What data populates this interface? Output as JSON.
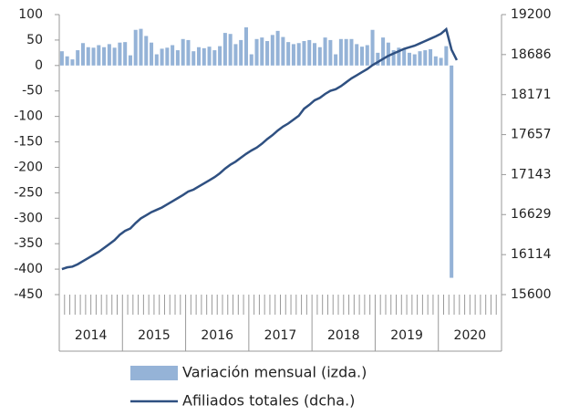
{
  "chart_data": {
    "type": "bar-line",
    "year_labels": [
      "2014",
      "2015",
      "2016",
      "2017",
      "2018",
      "2019",
      "2020"
    ],
    "ylim": [
      -450,
      100
    ],
    "yticks": [
      100,
      50,
      0,
      -50,
      -100,
      -150,
      -200,
      -250,
      -300,
      -350,
      -400,
      -450
    ],
    "y2lim": [
      15600,
      19200
    ],
    "y2ticks": [
      19200,
      18686,
      18171,
      17657,
      17143,
      16629,
      16114,
      15600
    ],
    "series": [
      {
        "name": "Variación mensual (izda.)",
        "color": "#95b3d7",
        "type": "bar",
        "values": [
          28,
          18,
          12,
          30,
          44,
          36,
          35,
          40,
          36,
          42,
          35,
          45,
          46,
          20,
          70,
          72,
          58,
          45,
          22,
          33,
          35,
          40,
          30,
          52,
          50,
          28,
          36,
          34,
          37,
          30,
          38,
          64,
          62,
          42,
          50,
          75,
          22,
          52,
          55,
          48,
          60,
          68,
          56,
          46,
          42,
          44,
          48,
          50,
          44,
          36,
          55,
          50,
          22,
          52,
          52,
          52,
          42,
          37,
          40,
          70,
          25,
          55,
          45,
          30,
          35,
          32,
          25,
          22,
          28,
          30,
          32,
          18,
          15,
          38,
          -417,
          null
        ]
      },
      {
        "name": "Afiliados totales (dcha.)",
        "color": "#2f5081",
        "type": "line",
        "axis": "y2",
        "values": [
          15928,
          15950,
          15960,
          15990,
          16030,
          16070,
          16110,
          16150,
          16200,
          16250,
          16300,
          16370,
          16420,
          16450,
          16520,
          16580,
          16620,
          16660,
          16690,
          16720,
          16760,
          16800,
          16840,
          16880,
          16925,
          16950,
          16990,
          17030,
          17070,
          17110,
          17160,
          17220,
          17270,
          17310,
          17360,
          17410,
          17453,
          17490,
          17540,
          17600,
          17650,
          17710,
          17760,
          17800,
          17850,
          17900,
          17990,
          18040,
          18098,
          18130,
          18180,
          18220,
          18240,
          18280,
          18330,
          18380,
          18420,
          18460,
          18500,
          18550,
          18590,
          18630,
          18670,
          18700,
          18730,
          18760,
          18780,
          18800,
          18830,
          18860,
          18890,
          18920,
          18954,
          19012,
          18750,
          18614
        ]
      }
    ]
  }
}
